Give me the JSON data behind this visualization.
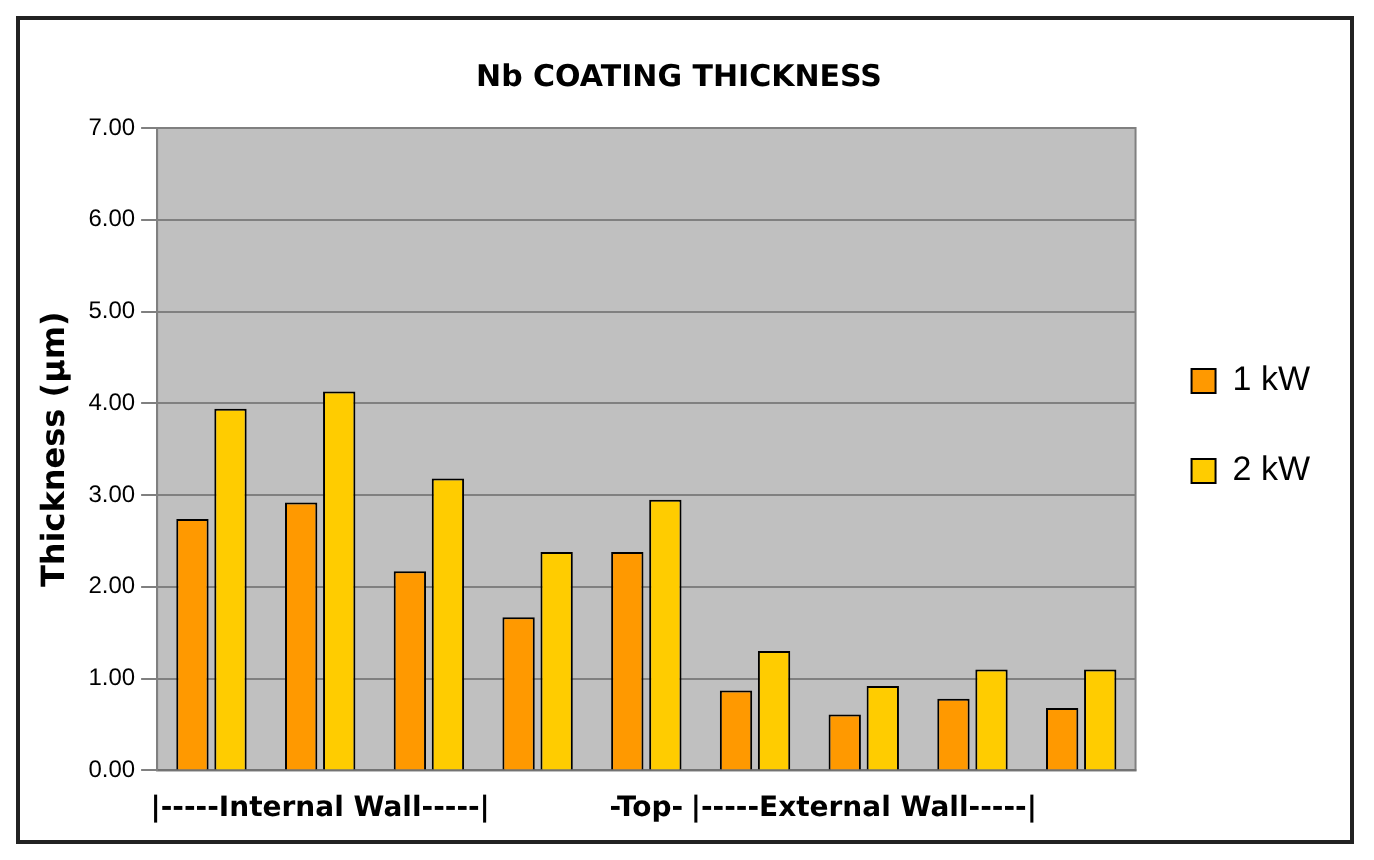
{
  "chart_data": {
    "type": "bar",
    "title": "Nb COATING THICKNESS",
    "ylabel": "Thickness (µm)",
    "categories": [
      null,
      "|-----Internal Wall-----|",
      null,
      null,
      "-Top-",
      null,
      "|-----External Wall-----|",
      null,
      null
    ],
    "series": [
      {
        "name": "1 kW",
        "color": "#ff9900",
        "values": [
          2.74,
          2.92,
          2.17,
          1.67,
          2.38,
          0.87,
          0.61,
          0.78,
          0.68
        ]
      },
      {
        "name": "2 kW",
        "color": "#ffcc00",
        "values": [
          3.94,
          4.13,
          3.18,
          2.38,
          2.95,
          1.3,
          0.92,
          1.1,
          1.1
        ]
      }
    ],
    "ylim": [
      0,
      7
    ],
    "yticks": [
      {
        "value": 0,
        "label": "0.00"
      },
      {
        "value": 1,
        "label": "1.00"
      },
      {
        "value": 2,
        "label": "2.00"
      },
      {
        "value": 3,
        "label": "3.00"
      },
      {
        "value": 4,
        "label": "4.00"
      },
      {
        "value": 5,
        "label": "5.00"
      },
      {
        "value": 6,
        "label": "6.00"
      },
      {
        "value": 7,
        "label": "7.00"
      }
    ],
    "grid": "y",
    "legend": "right"
  }
}
